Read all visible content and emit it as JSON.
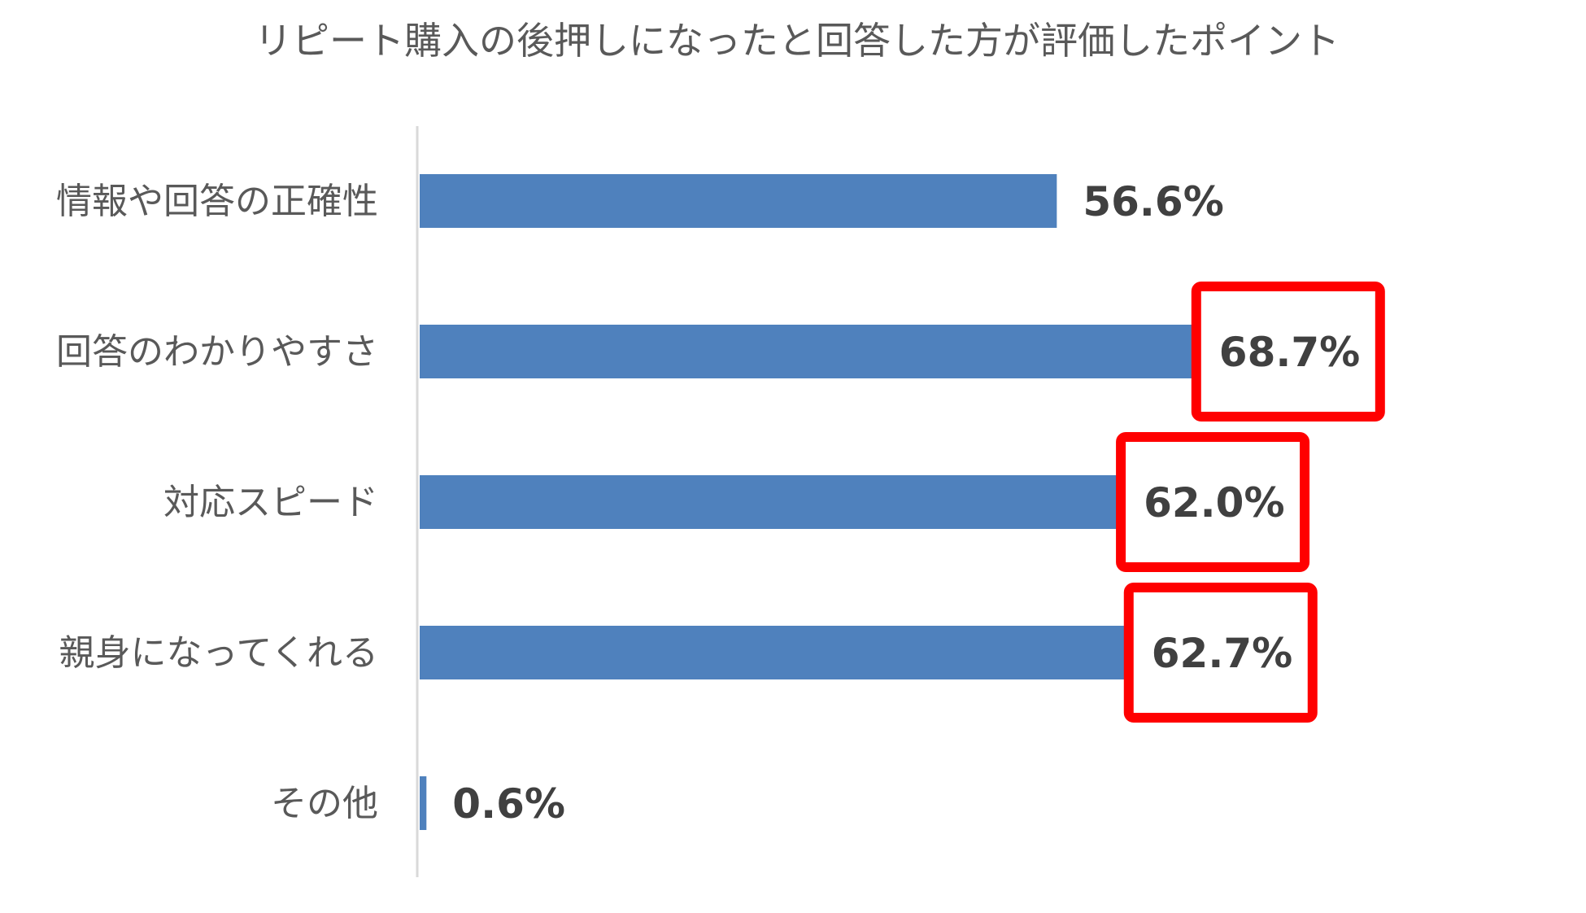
{
  "chart_data": {
    "type": "bar",
    "orientation": "horizontal",
    "title": "リピート購入の後押しになったと回答した方が評価したポイント",
    "categories": [
      "情報や回答の正確性",
      "回答のわかりやすさ",
      "対応スピード",
      "親身になってくれる",
      "その他"
    ],
    "values": [
      56.6,
      68.7,
      62.0,
      62.7,
      0.6
    ],
    "value_labels": [
      "56.6%",
      "68.7%",
      "62.0%",
      "62.7%",
      "0.6%"
    ],
    "highlighted": [
      false,
      true,
      true,
      true,
      false
    ],
    "xlim": [
      0,
      100
    ],
    "grid": false,
    "legend": "none",
    "colors": {
      "bar": "#4F81BD",
      "highlight_box": "#FF0000",
      "axis": "#D9D9D9",
      "text": "#595959",
      "value_text": "#404040"
    }
  }
}
